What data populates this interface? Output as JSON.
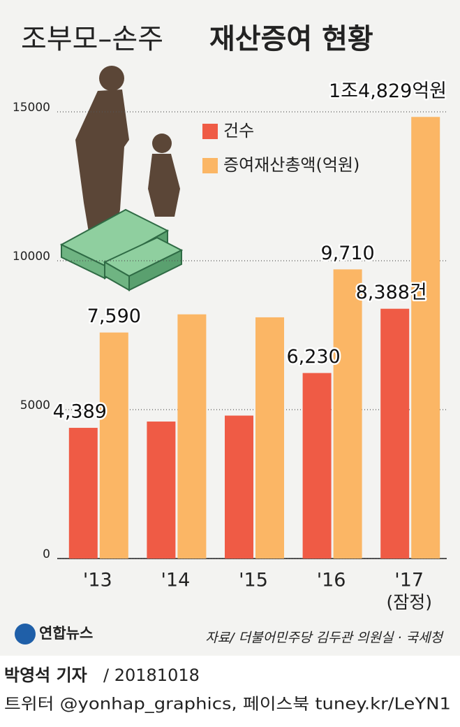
{
  "chart_data": {
    "type": "bar",
    "title": [
      "조부모–손주",
      "재산증여 현황"
    ],
    "categories": [
      "'13",
      "'14",
      "'15",
      "'16",
      "'17"
    ],
    "category_note": "(잠정)",
    "series": [
      {
        "name": "건수",
        "color": "#ef5b45",
        "values": [
          4389,
          4600,
          4800,
          6230,
          8388
        ],
        "value_labels": [
          "4,389",
          null,
          null,
          "6,230",
          "8,388건"
        ]
      },
      {
        "name": "증여재산총액(억원)",
        "color": "#fbb665",
        "values": [
          7590,
          8200,
          8100,
          9710,
          14829
        ],
        "value_labels": [
          "7,590",
          null,
          null,
          "9,710",
          "1조4,829억원"
        ]
      }
    ],
    "ylim": [
      0,
      15000
    ],
    "yticks": [
      0,
      5000,
      10000,
      15000
    ],
    "grid": true,
    "source": "자료/ 더불어민주당 김두관 의원실 · 국세청",
    "logo": "연합뉴스",
    "footer": {
      "reporter": "박영석 기자",
      "date": "/ 20181018",
      "social": "트위터 @yonhap_graphics, 페이스북 tuney.kr/LeYN1"
    }
  }
}
